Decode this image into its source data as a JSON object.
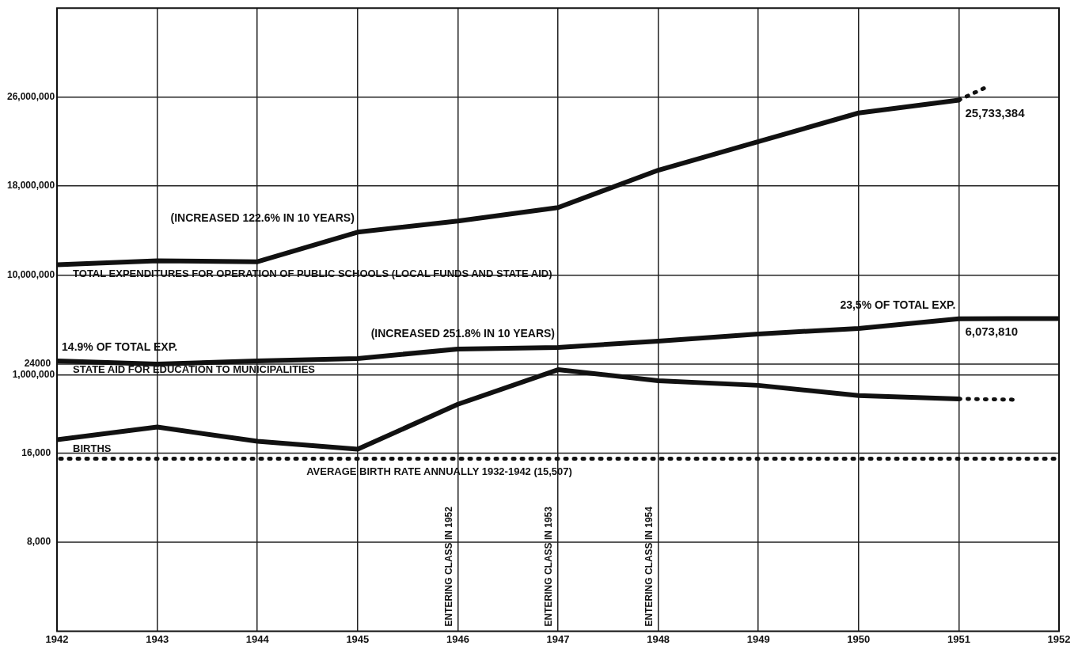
{
  "chart_data": {
    "type": "line",
    "x": [
      1942,
      1943,
      1944,
      1945,
      1946,
      1947,
      1948,
      1949,
      1950,
      1951
    ],
    "series": [
      {
        "name": "TOTAL EXPENDITURES FOR OPERATION OF PUBLIC SCHOOLS (LOCAL FUNDS AND STATE AID)",
        "color": "#111111",
        "values": [
          10930000,
          11290000,
          11200000,
          13860000,
          14860000,
          16070000,
          19430000,
          22000000,
          24570000,
          25733384
        ],
        "value_labels": [
          null,
          null,
          null,
          null,
          null,
          null,
          null,
          null,
          null,
          "25,733,384"
        ]
      },
      {
        "color": "#111111",
        "x": [
          1951,
          1951.3
        ],
        "values": [
          25730000,
          27000000
        ],
        "line_style": "dotted"
      },
      {
        "name": "STATE AID FOR EDUCATION TO MUNICIPALITIES",
        "color": "#111111",
        "x": [
          1942,
          1943,
          1944,
          1945,
          1946,
          1947,
          1948,
          1949,
          1950,
          1951,
          1952
        ],
        "values": [
          2290000,
          2000000,
          2290000,
          2500000,
          3360000,
          3500000,
          4070000,
          4710000,
          5210000,
          6073810,
          6100000
        ],
        "value_labels": [
          null,
          null,
          null,
          null,
          null,
          null,
          null,
          null,
          null,
          "6,073,810",
          null
        ]
      },
      {
        "name": "BIRTHS",
        "color": "#111111",
        "axis": "y2",
        "values": [
          17200,
          18340,
          17060,
          16350,
          20390,
          23500,
          22510,
          22090,
          21170,
          20880
        ]
      },
      {
        "color": "#111111",
        "axis": "y2",
        "x": [
          1951,
          1951.6
        ],
        "values": [
          20880,
          20800
        ],
        "line_style": "dotted"
      }
    ],
    "xlim": [
      1942,
      1952
    ],
    "xticks": [
      1942,
      1943,
      1944,
      1945,
      1946,
      1947,
      1948,
      1949,
      1950,
      1951,
      1952
    ],
    "ylim": [
      -22000000,
      34000000
    ],
    "yticks": [
      {
        "value": 1000000,
        "label": "1,000,000"
      },
      {
        "value": 10000000,
        "label": "10,000,000"
      },
      {
        "value": 18000000,
        "label": "18,000,000"
      },
      {
        "value": 26000000,
        "label": "26,000,000"
      }
    ],
    "y2lim": [
      0,
      56000
    ],
    "y2ticks": [
      {
        "value": 8000,
        "label": "8,000"
      },
      {
        "value": 16000,
        "label": "16,000"
      },
      24000
    ],
    "ref_lines": [
      {
        "axis": "y2",
        "value": 15507,
        "label": "AVERAGE BIRTH RATE ANNUALLY 1932-1942 (15,507)",
        "line_style": "dotted",
        "color": "#111111"
      }
    ],
    "annotations": [
      {
        "text": "(INCREASED 122.6% IN 10 YEARS)",
        "x": 1945,
        "y": 13860000
      },
      {
        "text": "(INCREASED 251.8% IN 10 YEARS)",
        "x": 1947,
        "y": 3500000
      },
      {
        "text": "14.9% OF TOTAL EXP.",
        "x": 1942,
        "y": 2290000
      },
      {
        "text": "23,5% OF TOTAL EXP.",
        "x": 1951,
        "y": 6073810
      },
      "ENTERING CLASS IN 1952",
      "ENTERING CLASS IN 1953",
      "ENTERING CLASS IN 1954"
    ],
    "grid": true,
    "marker": "none",
    "line_style": "solid"
  }
}
